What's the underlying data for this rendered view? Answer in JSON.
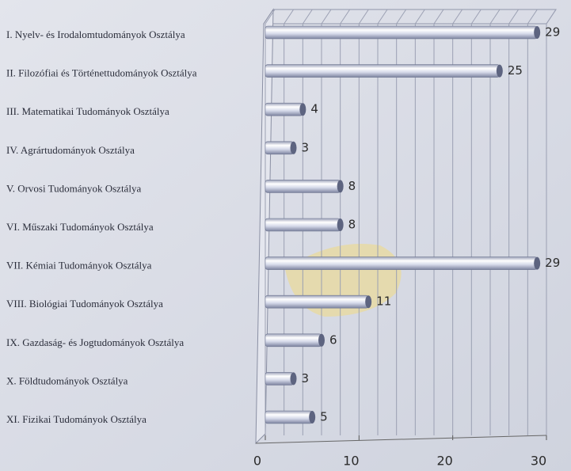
{
  "chart_data": {
    "type": "barh",
    "categories": [
      "I. Nyelv- és Irodalomtudományok Osztálya",
      "II. Filozófiai és Történettudományok Osztálya",
      "III. Matematikai Tudományok Osztálya",
      "IV. Agrártudományok Osztálya",
      "V. Orvosi Tudományok Osztálya",
      "VI. Műszaki Tudományok Osztálya",
      "VII. Kémiai Tudományok Osztálya",
      "VIII. Biológiai Tudományok Osztálya",
      "IX. Gazdaság- és Jogtudományok Osztálya",
      "X. Földtudományok Osztálya",
      "XI. Fizikai Tudományok Osztálya"
    ],
    "values": [
      29,
      25,
      4,
      3,
      8,
      8,
      29,
      11,
      6,
      3,
      5
    ],
    "color": "#c9cedf",
    "xlim": [
      0,
      30
    ],
    "xticks": [
      0,
      10,
      20,
      30
    ],
    "grid": true,
    "grid_step": 2
  }
}
